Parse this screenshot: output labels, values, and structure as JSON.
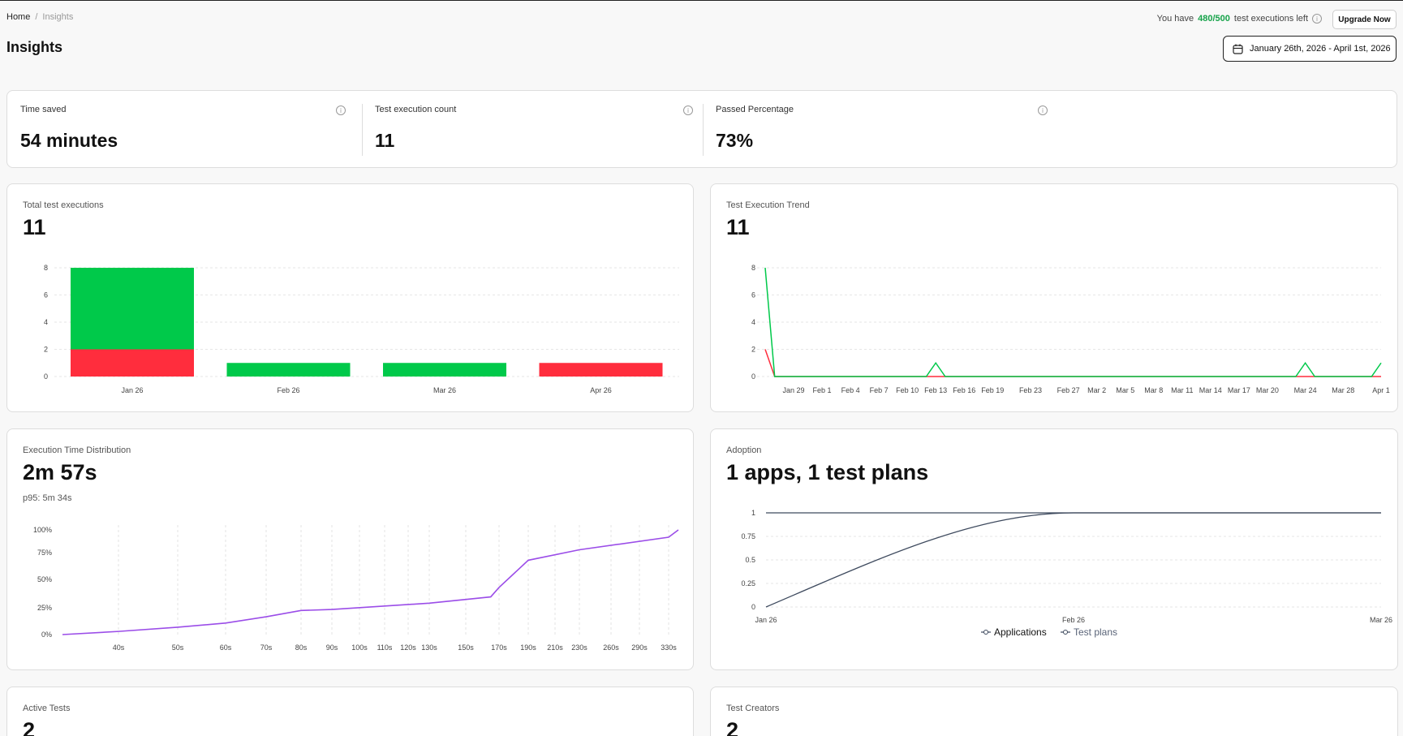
{
  "breadcrumb": {
    "home": "Home",
    "separator": "/",
    "current": "Insights"
  },
  "page_title": "Insights",
  "quota": {
    "prefix": "You have",
    "count": "480/500",
    "suffix": "test executions left"
  },
  "upgrade_label": "Upgrade Now",
  "date_range": "January 26th, 2026 - April 1st, 2026",
  "stats": {
    "time_saved": {
      "label": "Time saved",
      "value": "54 minutes"
    },
    "exec_count": {
      "label": "Test execution count",
      "value": "11"
    },
    "passed": {
      "label": "Passed Percentage",
      "value": "73%"
    }
  },
  "panels": {
    "total": {
      "title": "Total test executions",
      "value": "11"
    },
    "trend": {
      "title": "Test Execution Trend",
      "value": "11"
    },
    "distribution": {
      "title": "Execution Time Distribution",
      "value": "2m 57s",
      "sub": "p95: 5m 34s"
    },
    "adoption": {
      "title": "Adoption",
      "value": "1 apps, 1 test plans"
    },
    "active": {
      "title": "Active Tests",
      "value": "2"
    },
    "creators": {
      "title": "Test Creators",
      "value": "2"
    }
  },
  "colors": {
    "pass": "#00c94a",
    "fail": "#ff2d3d",
    "line": "#9b4de8",
    "adoption": "#3e4a5e"
  },
  "chart_data": [
    {
      "type": "bar",
      "stacked": true,
      "categories": [
        "Jan 26",
        "Feb 26",
        "Mar 26",
        "Apr 26"
      ],
      "series": [
        {
          "name": "",
          "color": "#ff2d3d",
          "values": [
            2,
            0,
            0,
            1
          ]
        },
        {
          "name": "",
          "color": "#00c94a",
          "values": [
            6,
            1,
            1,
            0
          ]
        }
      ],
      "yticks": [
        0,
        2,
        4,
        6,
        8
      ],
      "ylim": [
        0,
        8
      ]
    },
    {
      "type": "line",
      "xlabels": [
        "Jan 29",
        "Feb 1",
        "Feb 4",
        "Feb 7",
        "Feb 10",
        "Feb 13",
        "Feb 16",
        "Feb 19",
        "Feb 23",
        "Feb 27",
        "Mar 2",
        "Mar 5",
        "Mar 8",
        "Mar 11",
        "Mar 14",
        "Mar 17",
        "Mar 20",
        "Mar 24",
        "Mar 28",
        "Apr 1"
      ],
      "series": [
        {
          "name": "",
          "color": "#00c94a",
          "points": [
            [
              "Jan 26",
              8
            ],
            [
              "Jan 27",
              0
            ],
            [
              "Feb 12",
              0
            ],
            [
              "Feb 13",
              1
            ],
            [
              "Feb 14",
              0
            ],
            [
              "Mar 23",
              0
            ],
            [
              "Mar 24",
              1
            ],
            [
              "Mar 25",
              0
            ],
            [
              "Mar 31",
              0
            ],
            [
              "Apr 1",
              1
            ]
          ]
        },
        {
          "name": "",
          "color": "#ff2d3d",
          "points": [
            [
              "Jan 26",
              2
            ],
            [
              "Jan 27",
              0
            ],
            [
              "Apr 1",
              0
            ]
          ]
        }
      ],
      "yticks": [
        0,
        2,
        4,
        6,
        8
      ],
      "ylim": [
        0,
        8
      ]
    },
    {
      "type": "line",
      "xlabels": [
        "40s",
        "50s",
        "60s",
        "70s",
        "80s",
        "90s",
        "100s",
        "110s",
        "120s",
        "130s",
        "150s",
        "170s",
        "190s",
        "210s",
        "230s",
        "260s",
        "290s",
        "330s"
      ],
      "yticks": [
        "0%",
        "25%",
        "50%",
        "75%",
        "100%"
      ],
      "series": [
        {
          "name": "",
          "color": "#9b4de8",
          "points": [
            [
              30,
              0
            ],
            [
              40,
              3
            ],
            [
              50,
              7
            ],
            [
              60,
              11
            ],
            [
              70,
              17
            ],
            [
              80,
              23
            ],
            [
              90,
              24
            ],
            [
              130,
              30
            ],
            [
              165,
              36
            ],
            [
              170,
              45
            ],
            [
              190,
              71
            ],
            [
              230,
              81
            ],
            [
              330,
              93
            ],
            [
              332,
              100
            ]
          ]
        }
      ]
    },
    {
      "type": "line",
      "xlabels": [
        "Jan 26",
        "Feb 26",
        "Mar 26"
      ],
      "yticks": [
        0,
        0.25,
        0.5,
        0.75,
        1
      ],
      "ylim": [
        0,
        1
      ],
      "series": [
        {
          "name": "Applications",
          "color": "#3e4a5e",
          "values": [
            1,
            1,
            1
          ]
        },
        {
          "name": "Test plans",
          "color": "#3e4a5e",
          "values": [
            0,
            1,
            1
          ]
        }
      ]
    }
  ]
}
